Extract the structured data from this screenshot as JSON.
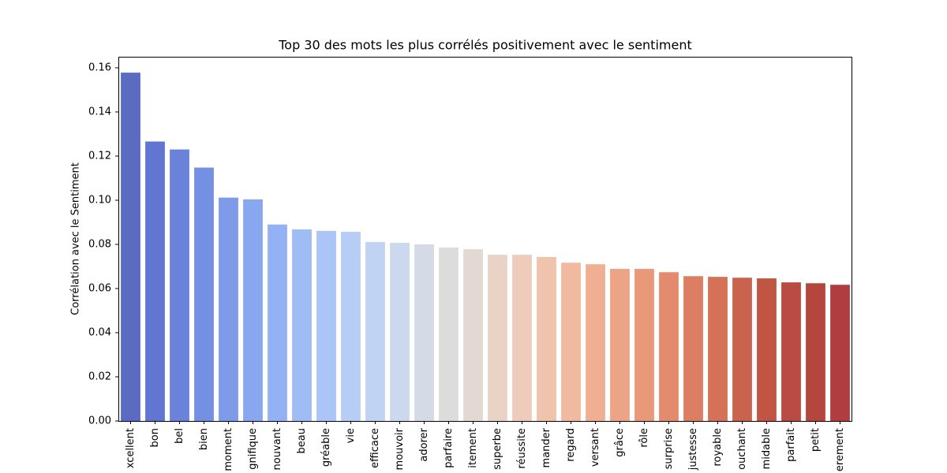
{
  "chart_data": {
    "type": "bar",
    "title": "Top 30 des mots les plus corrélés positivement avec le sentiment",
    "y_label": "Corrélation avec le Sentiment",
    "categories": [
      "xcellent",
      "bon",
      "bel",
      "bien",
      "moment",
      "gnifique",
      "nouvant",
      "beau",
      "gréable",
      "vie",
      "efficace",
      "mouvoir",
      "adorer",
      "parfaire",
      "itement",
      "superbe",
      "réussite",
      "mander",
      "regard",
      "versant",
      "grâce",
      "rôle",
      "surprise",
      "justesse",
      "royable",
      "ouchant",
      "midable",
      "parfait",
      "petit",
      "erement"
    ],
    "values": [
      0.1578,
      0.1266,
      0.123,
      0.1148,
      0.1012,
      0.1004,
      0.089,
      0.0868,
      0.0861,
      0.0857,
      0.0811,
      0.0807,
      0.08,
      0.0786,
      0.0778,
      0.0753,
      0.0753,
      0.0743,
      0.0717,
      0.071,
      0.0689,
      0.0689,
      0.0674,
      0.0656,
      0.0653,
      0.0649,
      0.0646,
      0.0628,
      0.0624,
      0.0617
    ],
    "colors": [
      "#5a6bc1",
      "#6176d0",
      "#6a82da",
      "#7490e2",
      "#7e9be9",
      "#89a7ef",
      "#94b2f3",
      "#a0bcf5",
      "#abc5f6",
      "#b6cdf5",
      "#c1d3f2",
      "#cbd8ee",
      "#d4dbe6",
      "#dcdcdd",
      "#e3d8d2",
      "#e9d3c7",
      "#eecbba",
      "#f0c3ad",
      "#f1b99f",
      "#f0ae92",
      "#eda385",
      "#e99878",
      "#e38b6c",
      "#dc7e61",
      "#d47157",
      "#ca634d",
      "#c05544",
      "#b94b42",
      "#b5463d",
      "#b03d40"
    ],
    "ylim": [
      0,
      0.165
    ],
    "yticks": [
      {
        "value": 0,
        "label": "0.00"
      },
      {
        "value": 0.02,
        "label": "0.02"
      },
      {
        "value": 0.04,
        "label": "0.04"
      },
      {
        "value": 0.06,
        "label": "0.06"
      },
      {
        "value": 0.08,
        "label": "0.08"
      },
      {
        "value": 0.1,
        "label": "0.10"
      },
      {
        "value": 0.12,
        "label": "0.12"
      },
      {
        "value": 0.14,
        "label": "0.14"
      },
      {
        "value": 0.16,
        "label": "0.16"
      }
    ],
    "grid": false
  }
}
